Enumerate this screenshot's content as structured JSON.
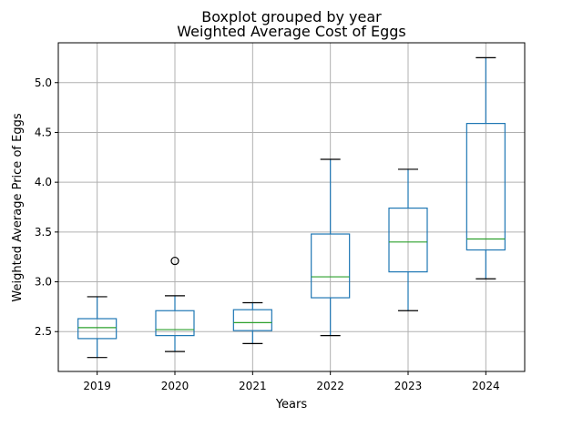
{
  "chart_data": {
    "type": "box",
    "suptitle": "Boxplot grouped by year",
    "title": "Weighted Average Cost of Eggs",
    "xlabel": "Years",
    "ylabel": "Weighted Average Price of Eggs",
    "ylim": [
      2.1,
      5.4
    ],
    "yticks": [
      2.5,
      3.0,
      3.5,
      4.0,
      4.5,
      5.0
    ],
    "ytick_labels": [
      "2.5",
      "3.0",
      "3.5",
      "4.0",
      "4.5",
      "5.0"
    ],
    "grid": true,
    "categories": [
      "2019",
      "2020",
      "2021",
      "2022",
      "2023",
      "2024"
    ],
    "boxes": [
      {
        "whisker_low": 2.24,
        "q1": 2.43,
        "median": 2.54,
        "q3": 2.63,
        "whisker_high": 2.85,
        "outliers": []
      },
      {
        "whisker_low": 2.3,
        "q1": 2.46,
        "median": 2.52,
        "q3": 2.71,
        "whisker_high": 2.86,
        "outliers": [
          3.21
        ]
      },
      {
        "whisker_low": 2.38,
        "q1": 2.51,
        "median": 2.59,
        "q3": 2.72,
        "whisker_high": 2.79,
        "outliers": []
      },
      {
        "whisker_low": 2.46,
        "q1": 2.84,
        "median": 3.05,
        "q3": 3.48,
        "whisker_high": 4.23,
        "outliers": []
      },
      {
        "whisker_low": 2.71,
        "q1": 3.1,
        "median": 3.4,
        "q3": 3.74,
        "whisker_high": 4.13,
        "outliers": []
      },
      {
        "whisker_low": 3.03,
        "q1": 3.32,
        "median": 3.43,
        "q3": 4.59,
        "whisker_high": 5.25,
        "outliers": []
      }
    ],
    "colors": {
      "box": "#1f77b4",
      "median": "#2ca02c",
      "whisker_cap": "#000000",
      "grid": "#b0b0b0",
      "outlier": "#000000"
    }
  }
}
